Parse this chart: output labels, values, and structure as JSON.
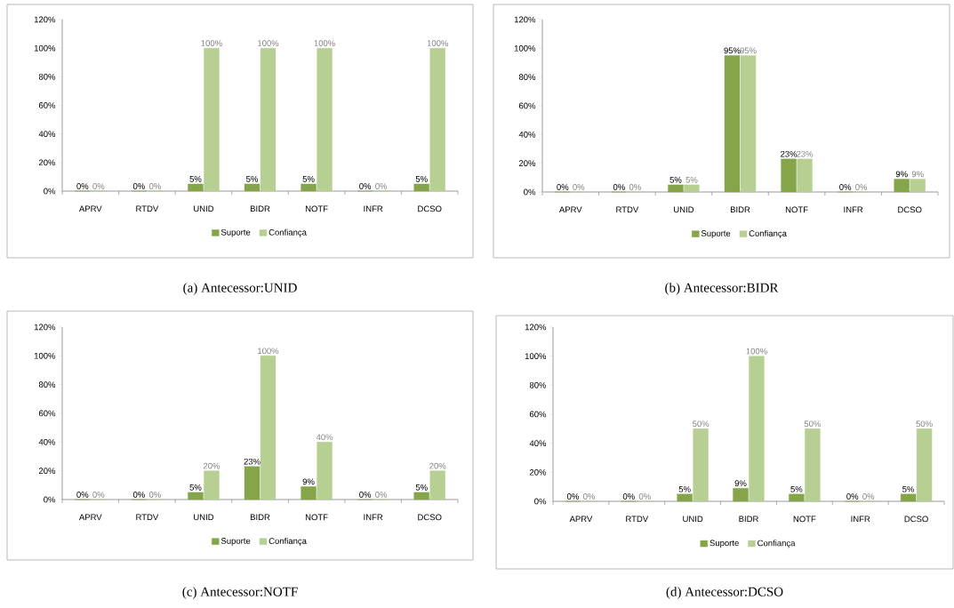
{
  "chart_data": [
    {
      "type": "bar",
      "title": "(a)  Antecessor:UNID",
      "categories": [
        "APRV",
        "RTDV",
        "UNID",
        "BIDR",
        "NOTF",
        "INFR",
        "DCSO"
      ],
      "series": [
        {
          "name": "Suporte",
          "color": "#86a54a",
          "values": [
            0,
            0,
            5,
            5,
            5,
            0,
            5
          ],
          "value_labels": [
            "0%",
            "0%",
            "5%",
            "5%",
            "5%",
            "0%",
            "5%"
          ]
        },
        {
          "name": "Confiança",
          "color": "#b8cf94",
          "values": [
            0,
            0,
            100,
            100,
            100,
            0,
            100
          ],
          "value_labels": [
            "0%",
            "0%",
            "100%",
            "100%",
            "100%",
            "0%",
            "100%"
          ]
        }
      ],
      "ylim": [
        0,
        120
      ],
      "yticks": [
        {
          "value": 0,
          "label": "0%"
        },
        {
          "value": 20,
          "label": "20%"
        },
        {
          "value": 40,
          "label": "40%"
        },
        {
          "value": 60,
          "label": "60%"
        },
        {
          "value": 80,
          "label": "80%"
        },
        {
          "value": 100,
          "label": "100%"
        },
        {
          "value": 120,
          "label": "120%"
        }
      ],
      "legend": "bottom"
    },
    {
      "type": "bar",
      "title": "(b)  Antecessor:BIDR",
      "categories": [
        "APRV",
        "RTDV",
        "UNID",
        "BIDR",
        "NOTF",
        "INFR",
        "DCSO"
      ],
      "series": [
        {
          "name": "Suporte",
          "color": "#86a54a",
          "values": [
            0,
            0,
            5,
            95,
            23,
            0,
            9
          ],
          "value_labels": [
            "0%",
            "0%",
            "5%",
            "95%",
            "23%",
            "0%",
            "9%"
          ]
        },
        {
          "name": "Confiança",
          "color": "#b8cf94",
          "values": [
            0,
            0,
            5,
            95,
            23,
            0,
            9
          ],
          "value_labels": [
            "0%",
            "0%",
            "5%",
            "95%",
            "23%",
            "0%",
            "9%"
          ]
        }
      ],
      "ylim": [
        0,
        120
      ],
      "yticks": [
        {
          "value": 0,
          "label": "0%"
        },
        {
          "value": 20,
          "label": "20%"
        },
        {
          "value": 40,
          "label": "40%"
        },
        {
          "value": 60,
          "label": "60%"
        },
        {
          "value": 80,
          "label": "80%"
        },
        {
          "value": 100,
          "label": "100%"
        },
        {
          "value": 120,
          "label": "120%"
        }
      ],
      "legend": "bottom"
    },
    {
      "type": "bar",
      "title": "(c)  Antecessor:NOTF",
      "categories": [
        "APRV",
        "RTDV",
        "UNID",
        "BIDR",
        "NOTF",
        "INFR",
        "DCSO"
      ],
      "series": [
        {
          "name": "Suporte",
          "color": "#86a54a",
          "values": [
            0,
            0,
            5,
            23,
            9,
            0,
            5
          ],
          "value_labels": [
            "0%",
            "0%",
            "5%",
            "23%",
            "9%",
            "0%",
            "5%"
          ]
        },
        {
          "name": "Confiança",
          "color": "#b8cf94",
          "values": [
            0,
            0,
            20,
            100,
            40,
            0,
            20
          ],
          "value_labels": [
            "0%",
            "0%",
            "20%",
            "100%",
            "40%",
            "0%",
            "20%"
          ]
        }
      ],
      "ylim": [
        0,
        120
      ],
      "yticks": [
        {
          "value": 0,
          "label": "0%"
        },
        {
          "value": 20,
          "label": "20%"
        },
        {
          "value": 40,
          "label": "40%"
        },
        {
          "value": 60,
          "label": "60%"
        },
        {
          "value": 80,
          "label": "80%"
        },
        {
          "value": 100,
          "label": "100%"
        },
        {
          "value": 120,
          "label": "120%"
        }
      ],
      "legend": "bottom"
    },
    {
      "type": "bar",
      "title": "(d)  Antecessor:DCSO",
      "categories": [
        "APRV",
        "RTDV",
        "UNID",
        "BIDR",
        "NOTF",
        "INFR",
        "DCSO"
      ],
      "series": [
        {
          "name": "Suporte",
          "color": "#86a54a",
          "values": [
            0,
            0,
            5,
            9,
            5,
            0,
            5
          ],
          "value_labels": [
            "0%",
            "0%",
            "5%",
            "9%",
            "5%",
            "0%",
            "5%"
          ]
        },
        {
          "name": "Confiança",
          "color": "#b8cf94",
          "values": [
            0,
            0,
            50,
            100,
            50,
            0,
            50
          ],
          "value_labels": [
            "0%",
            "0%",
            "50%",
            "100%",
            "50%",
            "0%",
            "50%"
          ]
        }
      ],
      "ylim": [
        0,
        120
      ],
      "yticks": [
        {
          "value": 0,
          "label": "0%"
        },
        {
          "value": 20,
          "label": "20%"
        },
        {
          "value": 40,
          "label": "40%"
        },
        {
          "value": 60,
          "label": "60%"
        },
        {
          "value": 80,
          "label": "80%"
        },
        {
          "value": 100,
          "label": "100%"
        },
        {
          "value": 120,
          "label": "120%"
        }
      ],
      "legend": "bottom"
    }
  ]
}
